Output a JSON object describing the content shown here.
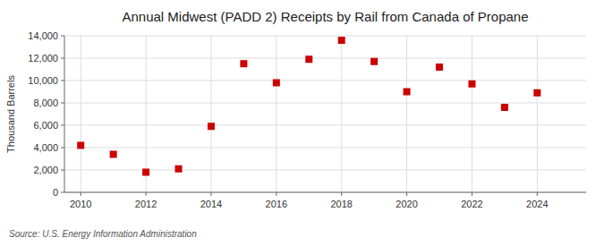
{
  "chart_data": {
    "type": "scatter",
    "title": "Annual Midwest (PADD 2) Receipts by Rail from Canada of Propane",
    "ylabel": "Thousand Barrels",
    "annotations": [
      "Source: U.S. Energy Information Administration"
    ],
    "x": [
      2010,
      2011,
      2012,
      2013,
      2014,
      2015,
      2016,
      2017,
      2018,
      2019,
      2020,
      2021,
      2022,
      2023,
      2024
    ],
    "values": [
      4200,
      3400,
      1800,
      2100,
      5900,
      11500,
      9800,
      11900,
      13600,
      11700,
      9000,
      11200,
      9700,
      7600,
      8900
    ],
    "color": "#cc0000",
    "marker": "square",
    "xlim": [
      2009.5,
      2025.5
    ],
    "ylim": [
      0,
      14000
    ],
    "xticks": [
      2010,
      2012,
      2014,
      2016,
      2018,
      2020,
      2022,
      2024
    ],
    "yticks": [
      0,
      {
        "value": 2000,
        "label": "2,000"
      },
      {
        "value": 4000,
        "label": "4,000"
      },
      {
        "value": 6000,
        "label": "6,000"
      },
      {
        "value": 8000,
        "label": "8,000"
      },
      {
        "value": 10000,
        "label": "10,000"
      },
      {
        "value": 12000,
        "label": "12,000"
      },
      {
        "value": 14000,
        "label": "14,000"
      }
    ],
    "grid": true
  }
}
